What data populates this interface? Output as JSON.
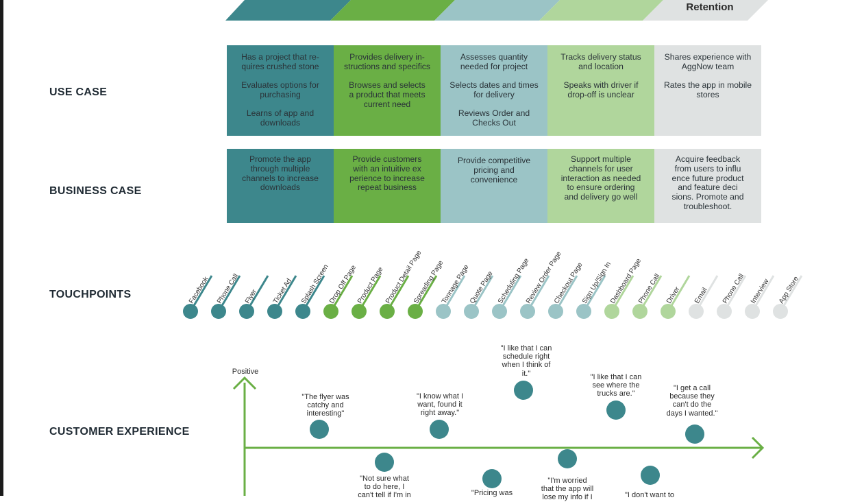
{
  "stages": {
    "last_label": "Retention"
  },
  "rows": {
    "use_case": "USE CASE",
    "business_case": "BUSINESS CASE",
    "touchpoints": "TOUCHPOINTS",
    "customer_experience": "CUSTOMER EXPERIENCE"
  },
  "use_case": [
    {
      "color": "#3d878c",
      "lines": [
        "Has a project that re-\nquires crushed stone",
        "Evaluates options for\npurchasing",
        "Learns of app and\ndownloads"
      ]
    },
    {
      "color": "#6aaf45",
      "lines": [
        "Provides delivery in-\nstructions and specifics",
        "Browses and selects\na product that meets\ncurrent need"
      ]
    },
    {
      "color": "#9bc4c6",
      "lines": [
        "Assesses quantity\nneeded for project",
        "Selects dates and times\nfor delivery",
        "Reviews Order and\nChecks Out"
      ]
    },
    {
      "color": "#b0d69c",
      "lines": [
        "Tracks delivery status\nand location",
        "Speaks with driver if\ndrop-off is unclear"
      ]
    },
    {
      "color": "#dfe2e2",
      "lines": [
        "Shares experience with\nAggNow team",
        "Rates the app in mobile\nstores"
      ]
    }
  ],
  "business_case": [
    {
      "color": "#3d878c",
      "text": "Promote the app\nthrough multiple\nchannels to increase\ndownloads"
    },
    {
      "color": "#6aaf45",
      "text": "Provide customers\nwith an intuitive ex\nperience to increase\nrepeat business"
    },
    {
      "color": "#9bc4c6",
      "text": "Provide competitive\npricing and\nconvenience"
    },
    {
      "color": "#b0d69c",
      "text": "Support multiple\nchannels for user\ninteraction as needed\nto ensure ordering\nand delivery go well"
    },
    {
      "color": "#dfe2e2",
      "text": "Acquire feedback\nfrom users to influ\nence future product\nand feature deci\nsions. Promote and\ntroubleshoot."
    }
  ],
  "touchpoints": [
    {
      "label": "Facebook",
      "color": "#3d878c"
    },
    {
      "label": "Phone Call",
      "color": "#3d878c"
    },
    {
      "label": "Flyer",
      "color": "#3d878c"
    },
    {
      "label": "Ticket Ad",
      "color": "#3d878c"
    },
    {
      "label": "Splash Screen",
      "color": "#3d878c"
    },
    {
      "label": "Drop Off Page",
      "color": "#6aaf45"
    },
    {
      "label": "Product Page",
      "color": "#6aaf45"
    },
    {
      "label": "Product Detail Page",
      "color": "#6aaf45"
    },
    {
      "label": "Spreading Page",
      "color": "#6aaf45"
    },
    {
      "label": "Tonnage Page",
      "color": "#9bc4c6"
    },
    {
      "label": "Quote Page",
      "color": "#9bc4c6"
    },
    {
      "label": "Scheduling Page",
      "color": "#9bc4c6"
    },
    {
      "label": "Review Order Page",
      "color": "#9bc4c6"
    },
    {
      "label": "Checkout Page",
      "color": "#9bc4c6"
    },
    {
      "label": "Sign Up/Sign In",
      "color": "#9bc4c6"
    },
    {
      "label": "Dashboard Page",
      "color": "#b0d69c"
    },
    {
      "label": "Phone Call",
      "color": "#b0d69c"
    },
    {
      "label": "Driver",
      "color": "#b0d69c"
    },
    {
      "label": "Email",
      "color": "#dfe2e2"
    },
    {
      "label": "Phone Call",
      "color": "#dfe2e2"
    },
    {
      "label": "Interview",
      "color": "#dfe2e2"
    },
    {
      "label": "App Store",
      "color": "#dfe2e2"
    }
  ],
  "customer_experience": {
    "positive_label": "Positive",
    "quotes": [
      {
        "text": "\"The flyer was\ncatchy and\ninteresting\""
      },
      {
        "text": "\"Not sure what\nto do here, I\ncan't tell if I'm in"
      },
      {
        "text": "\"I know what I\nwant, found it\nright away.\""
      },
      {
        "text": "\"Pricing was"
      },
      {
        "text": "\"I like that I can\nschedule right\nwhen I think of\nit.\""
      },
      {
        "text": "\"I'm worried\nthat the app will\nlose my info if I"
      },
      {
        "text": "\"I like that I can\nsee where the\ntrucks are.\""
      },
      {
        "text": "\"I don't want to"
      },
      {
        "text": "\"I get a call\nbecause they\ncan't do the\ndays I wanted.\""
      }
    ]
  },
  "colors": {
    "teal": "#3d878c",
    "green": "#6aaf45",
    "light_blue": "#9bc4c6",
    "light_green": "#b0d69c",
    "grey": "#dfe2e2",
    "axis": "#6aaf45",
    "dot": "#3d878c"
  }
}
